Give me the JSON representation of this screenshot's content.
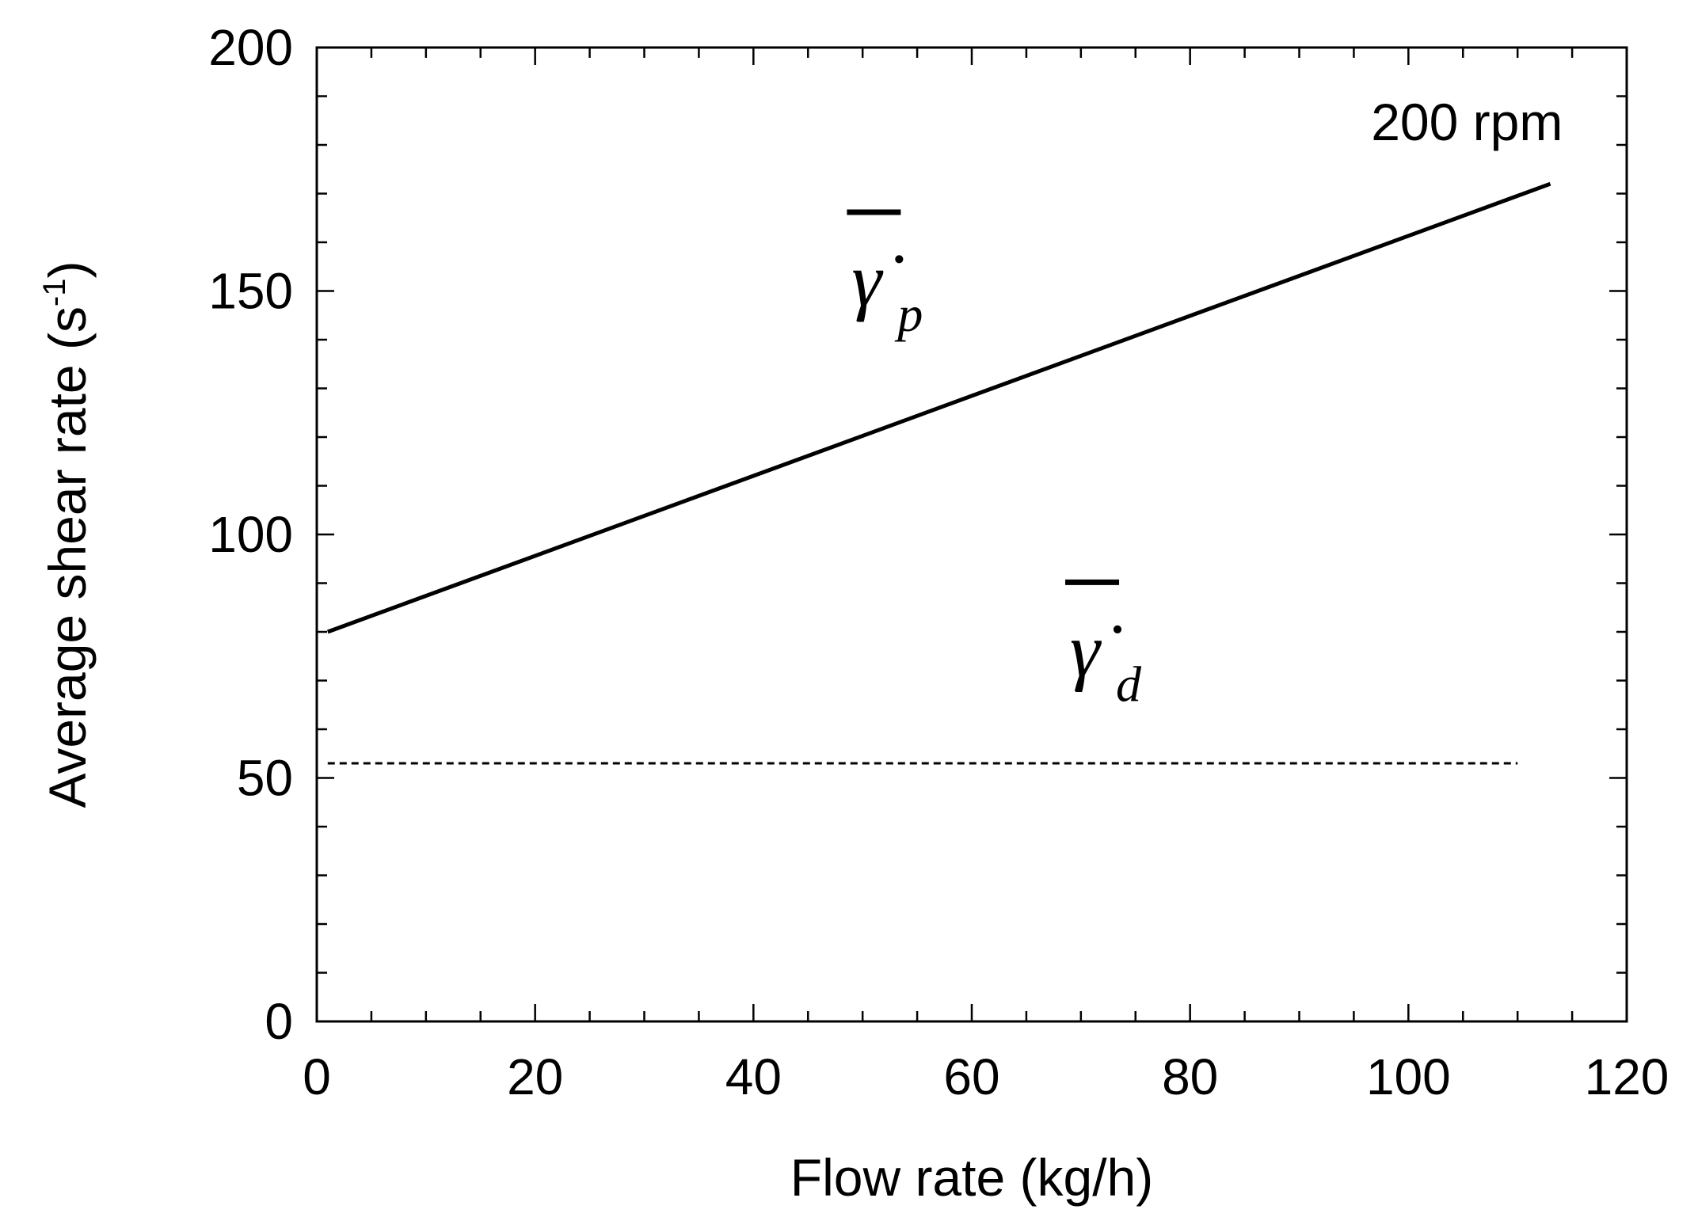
{
  "chart_data": {
    "type": "line",
    "xlabel": "Flow rate (kg/h)",
    "ylabel": "Average shear rate (s",
    "ylabel_sup": "-1",
    "ylabel_close": ")",
    "xlim": [
      0,
      120
    ],
    "ylim": [
      0,
      200
    ],
    "x_major_ticks": [
      0,
      20,
      40,
      60,
      80,
      100,
      120
    ],
    "x_tick_labels": [
      "0",
      "20",
      "40",
      "60",
      "80",
      "100",
      "120"
    ],
    "x_minor_step": 5,
    "y_major_ticks": [
      0,
      50,
      100,
      150,
      200
    ],
    "y_tick_labels": [
      "0",
      "50",
      "100",
      "150",
      "200"
    ],
    "y_minor_step": 10,
    "grid": false,
    "series": [
      {
        "name_symbol": "γ̇",
        "name_sub": "p",
        "style": "solid",
        "color": "#000000",
        "x": [
          1,
          113
        ],
        "y": [
          80,
          172
        ]
      },
      {
        "name_symbol": "γ̇",
        "name_sub": "d",
        "style": "dashed",
        "color": "#000000",
        "x": [
          1,
          110
        ],
        "y": [
          53,
          53
        ]
      }
    ],
    "annotations": [
      {
        "text": "200 rpm",
        "x": 105,
        "y": 181
      }
    ]
  }
}
